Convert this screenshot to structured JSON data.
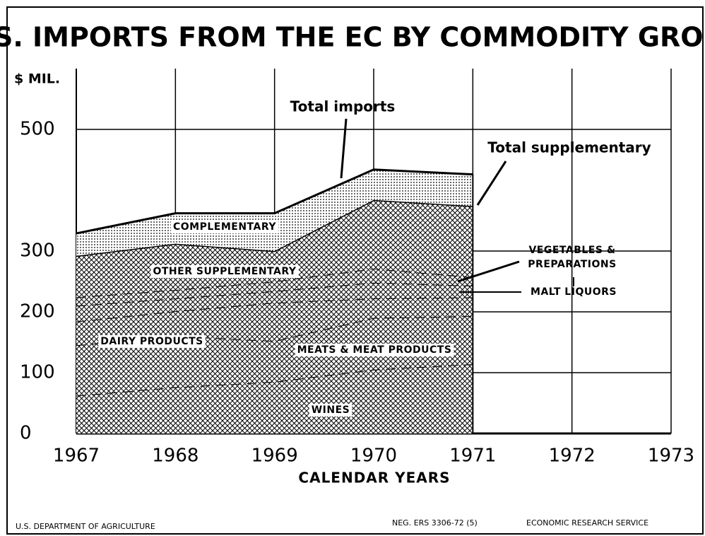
{
  "chart_data": {
    "type": "stacked_area",
    "title": "U.S. IMPORTS FROM THE EC BY COMMODITY GROUP",
    "ylabel": "$ MIL.",
    "xlabel": "CALENDAR YEARS",
    "x": [
      1967,
      1968,
      1969,
      1970,
      1971
    ],
    "xlim": [
      1967,
      1973
    ],
    "xticks": [
      1967,
      1968,
      1969,
      1970,
      1971,
      1972,
      1973
    ],
    "ylim": [
      0,
      600
    ],
    "yticks": [
      0,
      100,
      200,
      300,
      500
    ],
    "grid": true,
    "series": [
      {
        "name": "WINES",
        "color": "#000000",
        "pattern": "crosshatch",
        "values": [
          62,
          76,
          85,
          105,
          114
        ]
      },
      {
        "name": "MEATS & MEAT PRODUCTS",
        "color": "#000000",
        "pattern": "crosshatch",
        "values": [
          83,
          84,
          67,
          85,
          79
        ]
      },
      {
        "name": "DAIRY PRODUCTS",
        "color": "#000000",
        "pattern": "crosshatch",
        "values": [
          39,
          41,
          63,
          32,
          31
        ]
      },
      {
        "name": "MALT LIQUORS",
        "color": "#000000",
        "pattern": "crosshatch",
        "values": [
          26,
          21,
          19,
          26,
          19
        ]
      },
      {
        "name": "VEGETABLES & PREPARATIONS",
        "color": "#000000",
        "pattern": "crosshatch",
        "values": [
          14,
          14,
          16,
          23,
          14
        ]
      },
      {
        "name": "OTHER SUPPLEMENTARY",
        "color": "#000000",
        "pattern": "crosshatch",
        "values": [
          68,
          76,
          50,
          113,
          117
        ]
      },
      {
        "name": "COMPLEMENTARY",
        "color": "#000000",
        "pattern": "dots",
        "values": [
          37,
          50,
          62,
          50,
          52
        ]
      }
    ],
    "annotations": [
      "Total imports",
      "Total supplementary"
    ],
    "footer": [
      "U.S. DEPARTMENT OF AGRICULTURE",
      "NEG. ERS 3306-72 (5)",
      "ECONOMIC RESEARCH SERVICE"
    ]
  }
}
